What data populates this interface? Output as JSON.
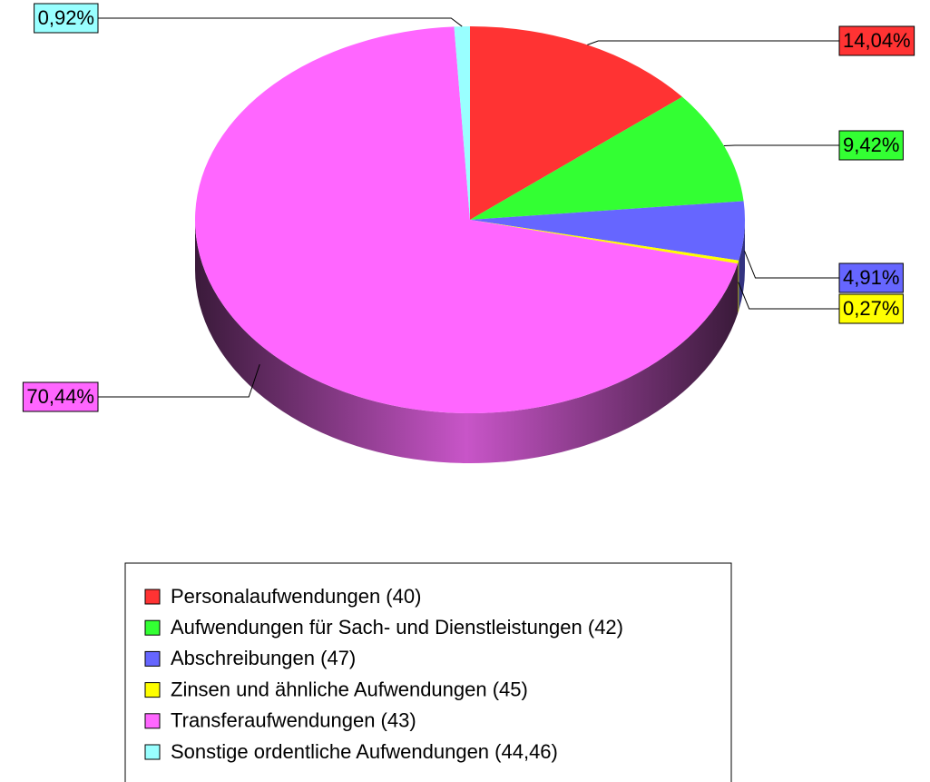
{
  "chart_data": {
    "type": "pie",
    "categories": [
      "Personalaufwendungen (40)",
      "Aufwendungen für Sach- und Dienstleistungen (42)",
      "Abschreibungen (47)",
      "Zinsen und ähnliche Aufwendungen (45)",
      "Transferaufwendungen (43)",
      "Sonstige ordentliche Aufwendungen (44,46)"
    ],
    "values": [
      14.04,
      9.42,
      4.91,
      0.27,
      70.44,
      0.92
    ],
    "value_labels": [
      "14,04%",
      "9,42%",
      "4,91%",
      "0,27%",
      "70,44%",
      "0,92%"
    ],
    "colors": [
      "#ff3333",
      "#33ff33",
      "#6666ff",
      "#ffff00",
      "#ff66ff",
      "#99ffff"
    ],
    "legend": "bottom"
  }
}
